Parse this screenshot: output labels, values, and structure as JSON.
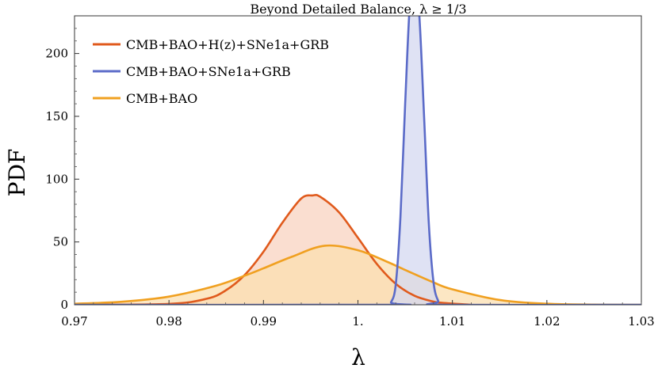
{
  "chart_data": {
    "type": "area",
    "title": "Beyond Detailed Balance, λ ≥ 1/3",
    "xlabel": "λ",
    "ylabel": "PDF",
    "xlim": [
      0.97,
      1.03
    ],
    "ylim": [
      0,
      230
    ],
    "grid": false,
    "legend_position": "top-left",
    "x_ticks": [
      0.97,
      0.98,
      0.99,
      1.0,
      1.01,
      1.02,
      1.03
    ],
    "x_tick_labels": [
      "0.97",
      "0.98",
      "0.99",
      "1.",
      "1.01",
      "1.02",
      "1.03"
    ],
    "y_ticks": [
      0,
      50,
      100,
      150,
      200
    ],
    "y_tick_labels": [
      "0",
      "50",
      "100",
      "150",
      "200"
    ],
    "series": [
      {
        "name": "CMB+BAO+H(z)+SNe1a+GRB",
        "color": "#e05a1c",
        "fill": "#f8d3c0",
        "x": [
          0.97,
          0.98,
          0.984,
          0.986,
          0.988,
          0.99,
          0.992,
          0.994,
          0.9952,
          0.996,
          0.998,
          1.0,
          1.002,
          1.004,
          1.006,
          1.008,
          1.009,
          1.012
        ],
        "y": [
          0,
          0.7,
          4.8,
          11.4,
          23.6,
          42.2,
          65.3,
          84.6,
          87.0,
          86.0,
          73.6,
          53.3,
          32.5,
          16.7,
          7.1,
          2.5,
          1.5,
          0
        ]
      },
      {
        "name": "CMB+BAO+SNe1a+GRB",
        "color": "#5b6bc8",
        "fill": "#d4d8f0",
        "x": [
          0.97,
          1.003,
          1.0035,
          1.004,
          1.0045,
          1.005,
          1.0055,
          1.006,
          1.0065,
          1.007,
          1.0075,
          1.008,
          1.0085,
          1.009,
          1.03
        ],
        "y": [
          0,
          0,
          2,
          16,
          70,
          160,
          240,
          265,
          230,
          150,
          65,
          18,
          3,
          0,
          0
        ]
      },
      {
        "name": "CMB+BAO",
        "color": "#f0a020",
        "fill": "#fbdfb0",
        "x": [
          0.97,
          0.975,
          0.98,
          0.985,
          0.988,
          0.99,
          0.993,
          0.9965,
          1.0,
          1.003,
          1.005,
          1.008,
          1.01,
          1.015,
          1.02,
          1.025,
          1.03
        ],
        "y": [
          0.8,
          2.4,
          6.5,
          15.2,
          23.1,
          29.0,
          38.2,
          47.0,
          43.4,
          34.5,
          27.7,
          17.8,
          12.3,
          3.8,
          0.8,
          0.1,
          0.0
        ]
      }
    ]
  }
}
